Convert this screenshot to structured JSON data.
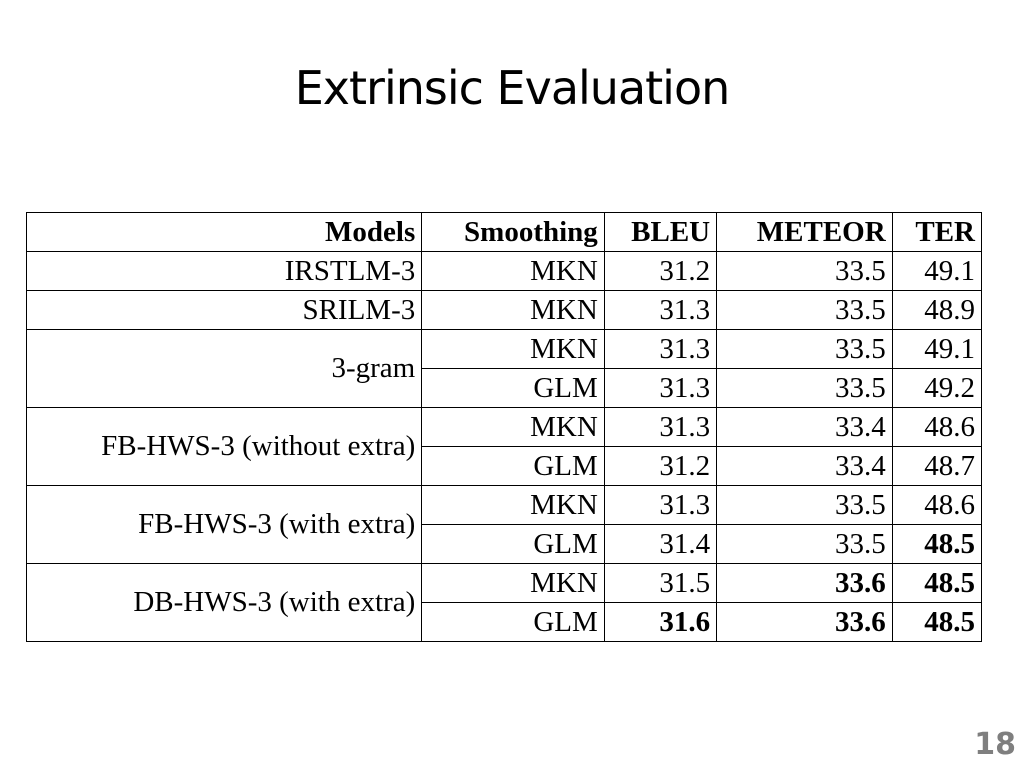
{
  "slide": {
    "title": "Extrinsic Evaluation",
    "page_number": "18"
  },
  "table": {
    "headers": [
      "Models",
      "Smoothing",
      "BLEU",
      "METEOR",
      "TER"
    ],
    "rows": [
      {
        "model": "IRSTLM-3",
        "smoothing": "MKN",
        "bleu": "31.2",
        "meteor": "33.5",
        "ter": "49.1",
        "bold": []
      },
      {
        "model": "SRILM-3",
        "smoothing": "MKN",
        "bleu": "31.3",
        "meteor": "33.5",
        "ter": "48.9",
        "bold": []
      },
      {
        "model": "3-gram",
        "smoothing": "MKN",
        "bleu": "31.3",
        "meteor": "33.5",
        "ter": "49.1",
        "bold": []
      },
      {
        "model": "3-gram",
        "smoothing": "GLM",
        "bleu": "31.3",
        "meteor": "33.5",
        "ter": "49.2",
        "bold": []
      },
      {
        "model": "FB-HWS-3 (without extra)",
        "smoothing": "MKN",
        "bleu": "31.3",
        "meteor": "33.4",
        "ter": "48.6",
        "bold": []
      },
      {
        "model": "FB-HWS-3 (without extra)",
        "smoothing": "GLM",
        "bleu": "31.2",
        "meteor": "33.4",
        "ter": "48.7",
        "bold": []
      },
      {
        "model": "FB-HWS-3 (with extra)",
        "smoothing": "MKN",
        "bleu": "31.3",
        "meteor": "33.5",
        "ter": "48.6",
        "bold": []
      },
      {
        "model": "FB-HWS-3 (with extra)",
        "smoothing": "GLM",
        "bleu": "31.4",
        "meteor": "33.5",
        "ter": "48.5",
        "bold": [
          "ter"
        ]
      },
      {
        "model": "DB-HWS-3 (with extra)",
        "smoothing": "MKN",
        "bleu": "31.5",
        "meteor": "33.6",
        "ter": "48.5",
        "bold": [
          "meteor",
          "ter"
        ]
      },
      {
        "model": "DB-HWS-3 (with extra)",
        "smoothing": "GLM",
        "bleu": "31.6",
        "meteor": "33.6",
        "ter": "48.5",
        "bold": [
          "bleu",
          "meteor",
          "ter"
        ]
      }
    ]
  }
}
